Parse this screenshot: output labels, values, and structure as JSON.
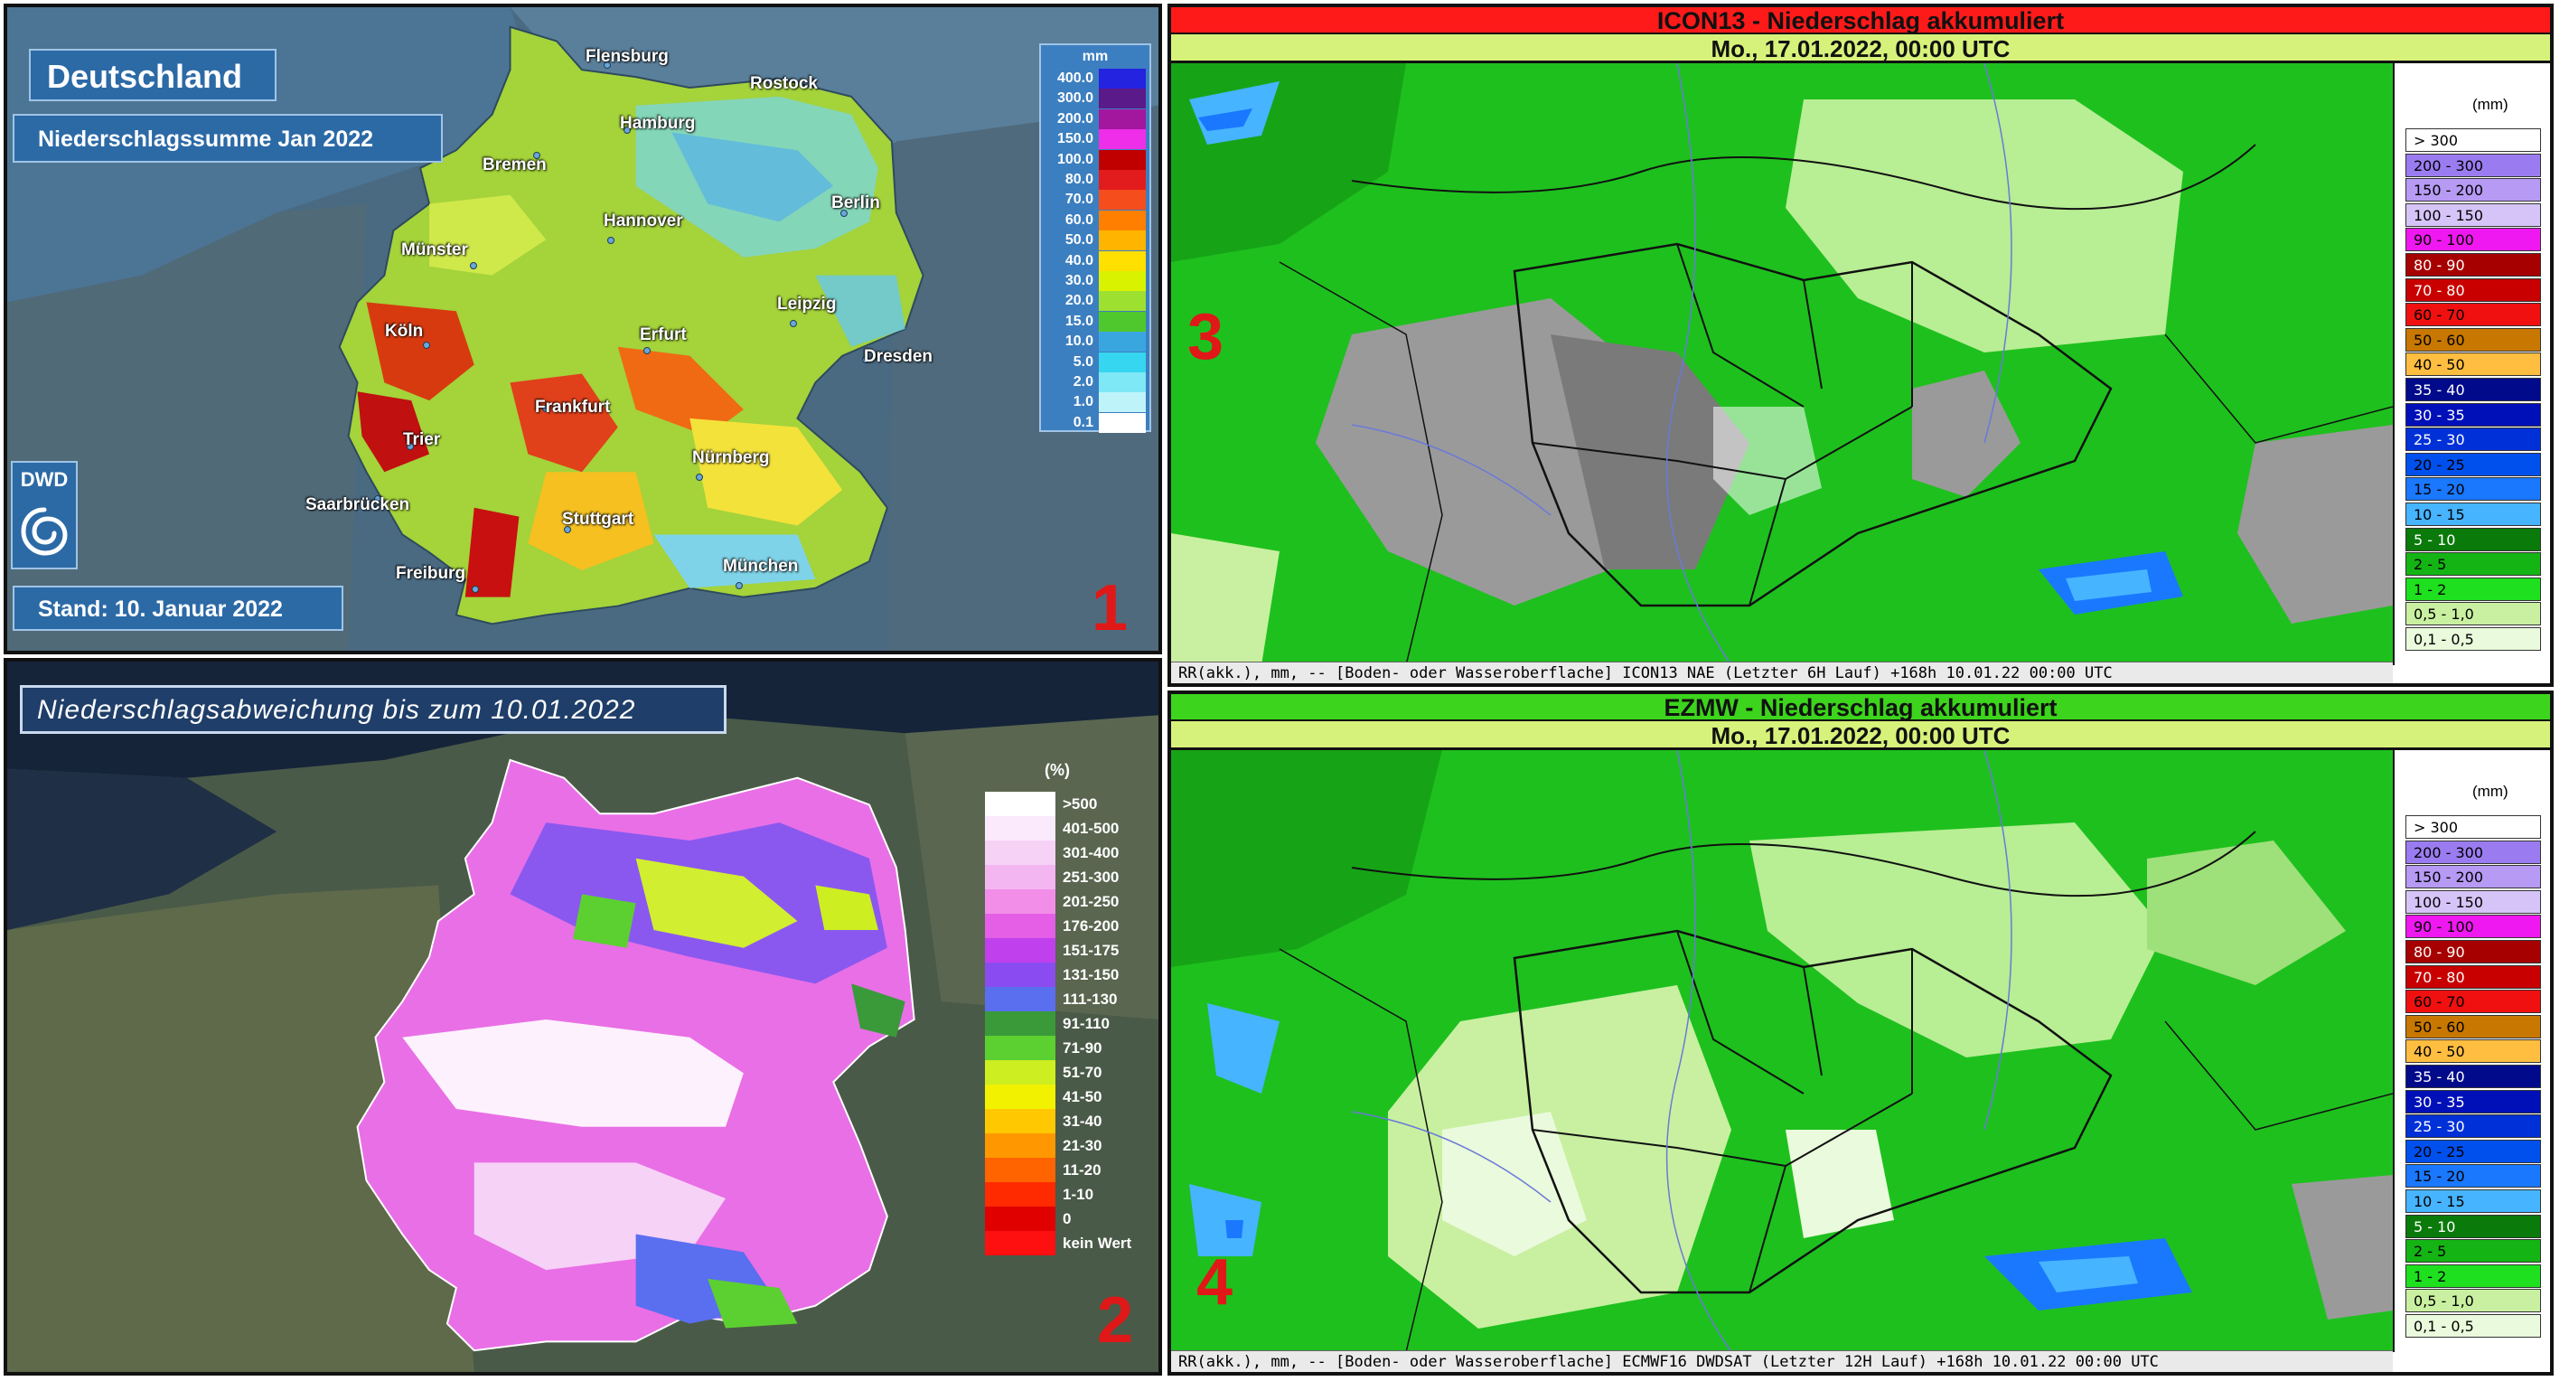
{
  "panel1": {
    "title": "Deutschland",
    "subtitle": "Niederschlagssumme Jan 2022",
    "stand": "Stand: 10. Januar 2022",
    "logo_text": "DWD",
    "number": "1",
    "legend_unit": "mm",
    "legend": [
      {
        "label": "400.0",
        "color": "#2323e0"
      },
      {
        "label": "300.0",
        "color": "#5a1a8a"
      },
      {
        "label": "200.0",
        "color": "#a3169e"
      },
      {
        "label": "150.0",
        "color": "#ee2ee8"
      },
      {
        "label": "100.0",
        "color": "#c00000"
      },
      {
        "label": "80.0",
        "color": "#e21c1c"
      },
      {
        "label": "70.0",
        "color": "#f54e1c"
      },
      {
        "label": "60.0",
        "color": "#ff8000"
      },
      {
        "label": "50.0",
        "color": "#ffb400"
      },
      {
        "label": "40.0",
        "color": "#ffe000"
      },
      {
        "label": "30.0",
        "color": "#d9f200"
      },
      {
        "label": "20.0",
        "color": "#9ee030"
      },
      {
        "label": "15.0",
        "color": "#4fc82e"
      },
      {
        "label": "10.0",
        "color": "#3aa6e0"
      },
      {
        "label": "5.0",
        "color": "#36d6f0"
      },
      {
        "label": "2.0",
        "color": "#7ee8f6"
      },
      {
        "label": "1.0",
        "color": "#bff3fa"
      },
      {
        "label": "0.1",
        "color": "#ffffff"
      }
    ],
    "cities": [
      {
        "name": "Flensburg"
      },
      {
        "name": "Rostock"
      },
      {
        "name": "Hamburg"
      },
      {
        "name": "Bremen"
      },
      {
        "name": "Berlin"
      },
      {
        "name": "Hannover"
      },
      {
        "name": "Münster"
      },
      {
        "name": "Leipzig"
      },
      {
        "name": "Köln"
      },
      {
        "name": "Erfurt"
      },
      {
        "name": "Dresden"
      },
      {
        "name": "Frankfurt"
      },
      {
        "name": "Trier"
      },
      {
        "name": "Nürnberg"
      },
      {
        "name": "Saarbrücken"
      },
      {
        "name": "Stuttgart"
      },
      {
        "name": "Freiburg"
      },
      {
        "name": "München"
      }
    ]
  },
  "panel2": {
    "title": "Niederschlagsabweichung bis zum 10.01.2022",
    "number": "2",
    "legend_unit": "(%)",
    "legend": [
      {
        "label": ">500",
        "color": "#ffffff"
      },
      {
        "label": "401-500",
        "color": "#fbeafb"
      },
      {
        "label": "301-400",
        "color": "#f6d2f6"
      },
      {
        "label": "251-300",
        "color": "#f4b6f0"
      },
      {
        "label": "201-250",
        "color": "#f28ee8"
      },
      {
        "label": "176-200",
        "color": "#e45ee6"
      },
      {
        "label": "151-175",
        "color": "#c040ee"
      },
      {
        "label": "131-150",
        "color": "#8a4cf0"
      },
      {
        "label": "111-130",
        "color": "#5a6ef0"
      },
      {
        "label": "91-110",
        "color": "#3a9a3a"
      },
      {
        "label": "71-90",
        "color": "#5cd030"
      },
      {
        "label": "51-70",
        "color": "#cdee20"
      },
      {
        "label": "41-50",
        "color": "#f2f200"
      },
      {
        "label": "31-40",
        "color": "#ffc800"
      },
      {
        "label": "21-30",
        "color": "#ff9800"
      },
      {
        "label": "11-20",
        "color": "#ff6400"
      },
      {
        "label": "1-10",
        "color": "#ff2a00"
      },
      {
        "label": "0",
        "color": "#e00000"
      },
      {
        "label": "kein Wert",
        "color": "#ff1010"
      }
    ]
  },
  "panel3": {
    "title": "ICON13 - Niederschlag akkumuliert",
    "title_bg": "#ff1a1a",
    "datetime": "Mo., 17.01.2022, 00:00 UTC",
    "footer": "RR(akk.), mm, -- [Boden- oder Wasseroberflache] ICON13 NAE (Letzter  6H Lauf) +168h  10.01.22 00:00 UTC",
    "number": "3",
    "legend_unit": "(mm)"
  },
  "panel4": {
    "title": "EZMW - Niederschlag akkumuliert",
    "title_bg": "#3cd41c",
    "datetime": "Mo., 17.01.2022, 00:00 UTC",
    "footer": "RR(akk.), mm, -- [Boden- oder Wasseroberflache] ECMWF16 DWDSAT (Letzter 12H Lauf) +168h  10.01.22 00:00 UTC",
    "number": "4",
    "legend_unit": "(mm)"
  },
  "model_legend": [
    {
      "label": "> 300",
      "color": "#ffffff"
    },
    {
      "label": "200 - 300",
      "color": "#9a7cf0"
    },
    {
      "label": "150 - 200",
      "color": "#b69af4"
    },
    {
      "label": "100 - 150",
      "color": "#d6c4f8"
    },
    {
      "label": "90 - 100",
      "color": "#f018f0"
    },
    {
      "label": "80 - 90",
      "color": "#a60000"
    },
    {
      "label": "70 - 80",
      "color": "#c80000"
    },
    {
      "label": "60 - 70",
      "color": "#f01010"
    },
    {
      "label": "50 - 60",
      "color": "#c87800"
    },
    {
      "label": "40 - 50",
      "color": "#ffbe40"
    },
    {
      "label": "35 - 40",
      "color": "#000a8a"
    },
    {
      "label": "30 - 35",
      "color": "#0010b8"
    },
    {
      "label": "25 - 30",
      "color": "#0030d8"
    },
    {
      "label": "20 - 25",
      "color": "#0050ee"
    },
    {
      "label": "15 - 20",
      "color": "#1a78ff"
    },
    {
      "label": "10 - 15",
      "color": "#46b4ff"
    },
    {
      "label": "5 - 10",
      "color": "#0a7a0a"
    },
    {
      "label": "2 - 5",
      "color": "#14b414"
    },
    {
      "label": "1 - 2",
      "color": "#1ee01e"
    },
    {
      "label": "0,5 - 1,0",
      "color": "#c8f0a0"
    },
    {
      "label": "0,1 - 0,5",
      "color": "#eafadc"
    }
  ]
}
